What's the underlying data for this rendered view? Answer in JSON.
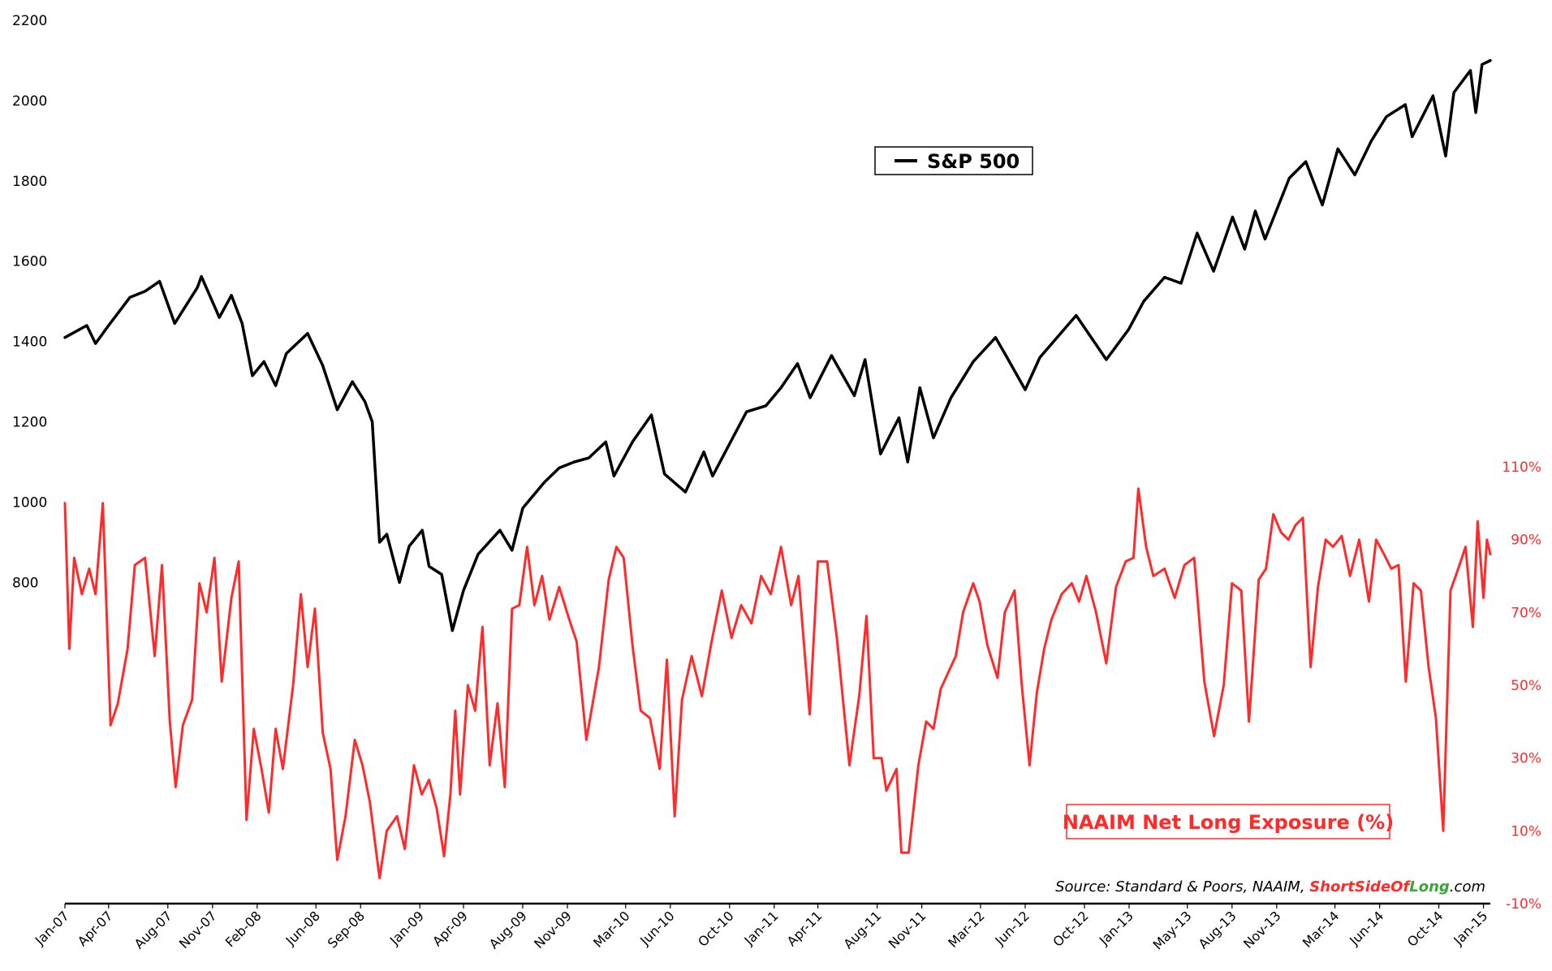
{
  "chart_data": {
    "type": "line",
    "x_ticks": [
      "Jan-07",
      "Apr-07",
      "Aug-07",
      "Nov-07",
      "Feb-08",
      "Jun-08",
      "Sep-08",
      "Jan-09",
      "Apr-09",
      "Aug-09",
      "Nov-09",
      "Mar-10",
      "Jun-10",
      "Oct-10",
      "Jan-11",
      "Apr-11",
      "Aug-11",
      "Nov-11",
      "Mar-12",
      "Jun-12",
      "Oct-12",
      "Jan-13",
      "May-13",
      "Aug-13",
      "Nov-13",
      "Mar-14",
      "Jun-14",
      "Oct-14",
      "Jan-15"
    ],
    "y_left": {
      "min": 0,
      "max": 2200,
      "ticks": [
        "800",
        "1000",
        "1200",
        "1400",
        "1600",
        "1800",
        "2000",
        "2200"
      ]
    },
    "y_right": {
      "min": -10,
      "max": 110,
      "ticks": [
        "-10%",
        "10%",
        "30%",
        "50%",
        "70%",
        "90%",
        "110%"
      ]
    },
    "series": [
      {
        "name": "S&P 500",
        "color": "#000000",
        "axis": "left",
        "points": [
          [
            "2007-01-01",
            1410
          ],
          [
            "2007-02-15",
            1440
          ],
          [
            "2007-03-05",
            1395
          ],
          [
            "2007-04-01",
            1440
          ],
          [
            "2007-05-15",
            1510
          ],
          [
            "2007-06-15",
            1525
          ],
          [
            "2007-07-15",
            1550
          ],
          [
            "2007-08-15",
            1445
          ],
          [
            "2007-10-01",
            1535
          ],
          [
            "2007-10-09",
            1562
          ],
          [
            "2007-11-15",
            1460
          ],
          [
            "2007-12-10",
            1515
          ],
          [
            "2008-01-01",
            1445
          ],
          [
            "2008-01-22",
            1315
          ],
          [
            "2008-02-15",
            1350
          ],
          [
            "2008-03-10",
            1290
          ],
          [
            "2008-04-01",
            1370
          ],
          [
            "2008-05-15",
            1420
          ],
          [
            "2008-06-15",
            1340
          ],
          [
            "2008-07-15",
            1230
          ],
          [
            "2008-08-15",
            1300
          ],
          [
            "2008-09-10",
            1250
          ],
          [
            "2008-09-25",
            1200
          ],
          [
            "2008-10-10",
            900
          ],
          [
            "2008-10-25",
            920
          ],
          [
            "2008-11-20",
            800
          ],
          [
            "2008-12-10",
            890
          ],
          [
            "2009-01-06",
            930
          ],
          [
            "2009-01-20",
            840
          ],
          [
            "2009-02-15",
            820
          ],
          [
            "2009-03-09",
            680
          ],
          [
            "2009-04-01",
            780
          ],
          [
            "2009-05-01",
            870
          ],
          [
            "2009-06-15",
            930
          ],
          [
            "2009-07-10",
            880
          ],
          [
            "2009-08-01",
            985
          ],
          [
            "2009-09-15",
            1050
          ],
          [
            "2009-10-15",
            1085
          ],
          [
            "2009-11-15",
            1100
          ],
          [
            "2009-12-15",
            1110
          ],
          [
            "2010-01-19",
            1150
          ],
          [
            "2010-02-05",
            1065
          ],
          [
            "2010-03-15",
            1150
          ],
          [
            "2010-04-23",
            1217
          ],
          [
            "2010-05-20",
            1070
          ],
          [
            "2010-07-02",
            1025
          ],
          [
            "2010-08-09",
            1125
          ],
          [
            "2010-08-27",
            1065
          ],
          [
            "2010-10-01",
            1145
          ],
          [
            "2010-11-05",
            1225
          ],
          [
            "2010-12-15",
            1240
          ],
          [
            "2011-01-15",
            1285
          ],
          [
            "2011-02-18",
            1345
          ],
          [
            "2011-03-16",
            1260
          ],
          [
            "2011-04-29",
            1365
          ],
          [
            "2011-06-15",
            1265
          ],
          [
            "2011-07-07",
            1355
          ],
          [
            "2011-08-08",
            1120
          ],
          [
            "2011-09-15",
            1210
          ],
          [
            "2011-10-03",
            1100
          ],
          [
            "2011-10-28",
            1285
          ],
          [
            "2011-11-25",
            1160
          ],
          [
            "2011-12-31",
            1260
          ],
          [
            "2012-02-15",
            1350
          ],
          [
            "2012-04-01",
            1410
          ],
          [
            "2012-04-20",
            1370
          ],
          [
            "2012-06-01",
            1280
          ],
          [
            "2012-07-01",
            1360
          ],
          [
            "2012-09-14",
            1465
          ],
          [
            "2012-11-15",
            1355
          ],
          [
            "2012-12-31",
            1430
          ],
          [
            "2013-01-31",
            1500
          ],
          [
            "2013-03-15",
            1560
          ],
          [
            "2013-04-18",
            1545
          ],
          [
            "2013-05-21",
            1670
          ],
          [
            "2013-06-24",
            1575
          ],
          [
            "2013-08-02",
            1710
          ],
          [
            "2013-08-27",
            1630
          ],
          [
            "2013-09-18",
            1725
          ],
          [
            "2013-10-08",
            1655
          ],
          [
            "2013-11-27",
            1807
          ],
          [
            "2013-12-31",
            1848
          ],
          [
            "2014-02-03",
            1740
          ],
          [
            "2014-03-07",
            1880
          ],
          [
            "2014-04-11",
            1815
          ],
          [
            "2014-05-15",
            1900
          ],
          [
            "2014-06-15",
            1960
          ],
          [
            "2014-07-24",
            1990
          ],
          [
            "2014-08-07",
            1910
          ],
          [
            "2014-09-19",
            2012
          ],
          [
            "2014-10-15",
            1862
          ],
          [
            "2014-11-01",
            2020
          ],
          [
            "2014-12-05",
            2075
          ],
          [
            "2014-12-16",
            1970
          ],
          [
            "2014-12-29",
            2090
          ],
          [
            "2015-01-15",
            2100
          ]
        ]
      },
      {
        "name": "NAAIM Net Long Exposure (%)",
        "color": "#ff2a2a",
        "axis": "right",
        "points": [
          [
            "2007-01-01",
            100
          ],
          [
            "2007-01-10",
            60
          ],
          [
            "2007-01-20",
            85
          ],
          [
            "2007-02-05",
            75
          ],
          [
            "2007-02-20",
            82
          ],
          [
            "2007-03-05",
            75
          ],
          [
            "2007-03-20",
            100
          ],
          [
            "2007-04-05",
            39
          ],
          [
            "2007-04-20",
            45
          ],
          [
            "2007-05-10",
            60
          ],
          [
            "2007-05-25",
            83
          ],
          [
            "2007-06-15",
            85
          ],
          [
            "2007-07-05",
            58
          ],
          [
            "2007-07-20",
            83
          ],
          [
            "2007-08-05",
            40
          ],
          [
            "2007-08-17",
            22
          ],
          [
            "2007-09-01",
            39
          ],
          [
            "2007-09-20",
            46
          ],
          [
            "2007-10-05",
            78
          ],
          [
            "2007-10-20",
            70
          ],
          [
            "2007-11-05",
            85
          ],
          [
            "2007-11-20",
            51
          ],
          [
            "2007-12-10",
            74
          ],
          [
            "2007-12-25",
            84
          ],
          [
            "2008-01-10",
            13
          ],
          [
            "2008-01-25",
            38
          ],
          [
            "2008-02-10",
            27
          ],
          [
            "2008-02-25",
            15
          ],
          [
            "2008-03-10",
            38
          ],
          [
            "2008-03-25",
            27
          ],
          [
            "2008-04-15",
            50
          ],
          [
            "2008-05-01",
            75
          ],
          [
            "2008-05-15",
            55
          ],
          [
            "2008-05-30",
            71
          ],
          [
            "2008-06-15",
            37
          ],
          [
            "2008-07-01",
            27
          ],
          [
            "2008-07-15",
            2
          ],
          [
            "2008-08-01",
            14
          ],
          [
            "2008-08-20",
            35
          ],
          [
            "2008-09-05",
            28
          ],
          [
            "2008-09-20",
            18
          ],
          [
            "2008-10-10",
            -3
          ],
          [
            "2008-10-25",
            10
          ],
          [
            "2008-11-15",
            14
          ],
          [
            "2008-12-01",
            5
          ],
          [
            "2008-12-20",
            28
          ],
          [
            "2009-01-05",
            20
          ],
          [
            "2009-01-20",
            24
          ],
          [
            "2009-02-05",
            16
          ],
          [
            "2009-02-20",
            3
          ],
          [
            "2009-03-05",
            20
          ],
          [
            "2009-03-15",
            43
          ],
          [
            "2009-03-25",
            20
          ],
          [
            "2009-04-10",
            50
          ],
          [
            "2009-04-25",
            43
          ],
          [
            "2009-05-10",
            66
          ],
          [
            "2009-05-25",
            28
          ],
          [
            "2009-06-10",
            45
          ],
          [
            "2009-06-25",
            22
          ],
          [
            "2009-07-10",
            71
          ],
          [
            "2009-07-25",
            72
          ],
          [
            "2009-08-10",
            88
          ],
          [
            "2009-08-25",
            72
          ],
          [
            "2009-09-10",
            80
          ],
          [
            "2009-09-25",
            68
          ],
          [
            "2009-10-15",
            77
          ],
          [
            "2009-11-05",
            68
          ],
          [
            "2009-11-20",
            62
          ],
          [
            "2009-12-10",
            35
          ],
          [
            "2010-01-05",
            55
          ],
          [
            "2010-01-25",
            79
          ],
          [
            "2010-02-10",
            88
          ],
          [
            "2010-02-25",
            85
          ],
          [
            "2010-03-15",
            61
          ],
          [
            "2010-04-01",
            43
          ],
          [
            "2010-04-20",
            41
          ],
          [
            "2010-05-10",
            27
          ],
          [
            "2010-05-25",
            57
          ],
          [
            "2010-06-10",
            14
          ],
          [
            "2010-06-25",
            46
          ],
          [
            "2010-07-15",
            58
          ],
          [
            "2010-08-05",
            47
          ],
          [
            "2010-08-25",
            62
          ],
          [
            "2010-09-15",
            76
          ],
          [
            "2010-10-05",
            63
          ],
          [
            "2010-10-25",
            72
          ],
          [
            "2010-11-15",
            67
          ],
          [
            "2010-12-05",
            80
          ],
          [
            "2010-12-25",
            75
          ],
          [
            "2011-01-15",
            88
          ],
          [
            "2011-02-05",
            72
          ],
          [
            "2011-02-20",
            80
          ],
          [
            "2011-03-15",
            42
          ],
          [
            "2011-04-01",
            84
          ],
          [
            "2011-04-20",
            84
          ],
          [
            "2011-05-10",
            63
          ],
          [
            "2011-06-05",
            28
          ],
          [
            "2011-06-25",
            47
          ],
          [
            "2011-07-10",
            69
          ],
          [
            "2011-07-25",
            30
          ],
          [
            "2011-08-10",
            30
          ],
          [
            "2011-08-20",
            21
          ],
          [
            "2011-09-10",
            27
          ],
          [
            "2011-09-20",
            4
          ],
          [
            "2011-10-05",
            4
          ],
          [
            "2011-10-25",
            28
          ],
          [
            "2011-11-10",
            40
          ],
          [
            "2011-11-25",
            38
          ],
          [
            "2011-12-10",
            49
          ],
          [
            "2012-01-10",
            58
          ],
          [
            "2012-01-25",
            70
          ],
          [
            "2012-02-15",
            78
          ],
          [
            "2012-02-28",
            73
          ],
          [
            "2012-03-15",
            61
          ],
          [
            "2012-04-05",
            52
          ],
          [
            "2012-04-20",
            70
          ],
          [
            "2012-05-10",
            76
          ],
          [
            "2012-05-25",
            50
          ],
          [
            "2012-06-10",
            28
          ],
          [
            "2012-06-25",
            48
          ],
          [
            "2012-07-10",
            60
          ],
          [
            "2012-07-25",
            68
          ],
          [
            "2012-08-15",
            75
          ],
          [
            "2012-09-05",
            78
          ],
          [
            "2012-09-20",
            73
          ],
          [
            "2012-10-05",
            80
          ],
          [
            "2012-10-25",
            70
          ],
          [
            "2012-11-15",
            56
          ],
          [
            "2012-12-05",
            77
          ],
          [
            "2012-12-25",
            84
          ],
          [
            "2013-01-10",
            85
          ],
          [
            "2013-01-20",
            104
          ],
          [
            "2013-02-05",
            88
          ],
          [
            "2013-02-20",
            80
          ],
          [
            "2013-03-15",
            82
          ],
          [
            "2013-04-05",
            74
          ],
          [
            "2013-04-25",
            83
          ],
          [
            "2013-05-15",
            85
          ],
          [
            "2013-06-05",
            51
          ],
          [
            "2013-06-25",
            36
          ],
          [
            "2013-07-15",
            50
          ],
          [
            "2013-08-01",
            78
          ],
          [
            "2013-08-20",
            76
          ],
          [
            "2013-09-05",
            40
          ],
          [
            "2013-09-25",
            79
          ],
          [
            "2013-10-10",
            82
          ],
          [
            "2013-10-25",
            97
          ],
          [
            "2013-11-10",
            92
          ],
          [
            "2013-11-25",
            90
          ],
          [
            "2013-12-10",
            94
          ],
          [
            "2013-12-25",
            96
          ],
          [
            "2014-01-10",
            55
          ],
          [
            "2014-01-25",
            77
          ],
          [
            "2014-02-10",
            90
          ],
          [
            "2014-02-25",
            88
          ],
          [
            "2014-03-15",
            91
          ],
          [
            "2014-04-01",
            80
          ],
          [
            "2014-04-20",
            90
          ],
          [
            "2014-05-10",
            73
          ],
          [
            "2014-05-25",
            90
          ],
          [
            "2014-06-10",
            86
          ],
          [
            "2014-06-25",
            82
          ],
          [
            "2014-07-10",
            83
          ],
          [
            "2014-07-25",
            51
          ],
          [
            "2014-08-10",
            78
          ],
          [
            "2014-08-25",
            76
          ],
          [
            "2014-09-10",
            55
          ],
          [
            "2014-09-25",
            41
          ],
          [
            "2014-10-10",
            10
          ],
          [
            "2014-10-25",
            76
          ],
          [
            "2014-11-10",
            82
          ],
          [
            "2014-11-25",
            88
          ],
          [
            "2014-12-10",
            66
          ],
          [
            "2014-12-20",
            95
          ],
          [
            "2015-01-01",
            74
          ],
          [
            "2015-01-08",
            90
          ],
          [
            "2015-01-15",
            86
          ]
        ]
      }
    ],
    "legends": {
      "sp500": "S&P 500",
      "naaim": "NAAIM Net Long Exposure (%)"
    },
    "source": {
      "prefix": "Source: Standard & Poors, NAAIM, ",
      "short": "Short",
      "side_of": "SideOf",
      "long": "Long",
      "suffix": ".com"
    }
  }
}
